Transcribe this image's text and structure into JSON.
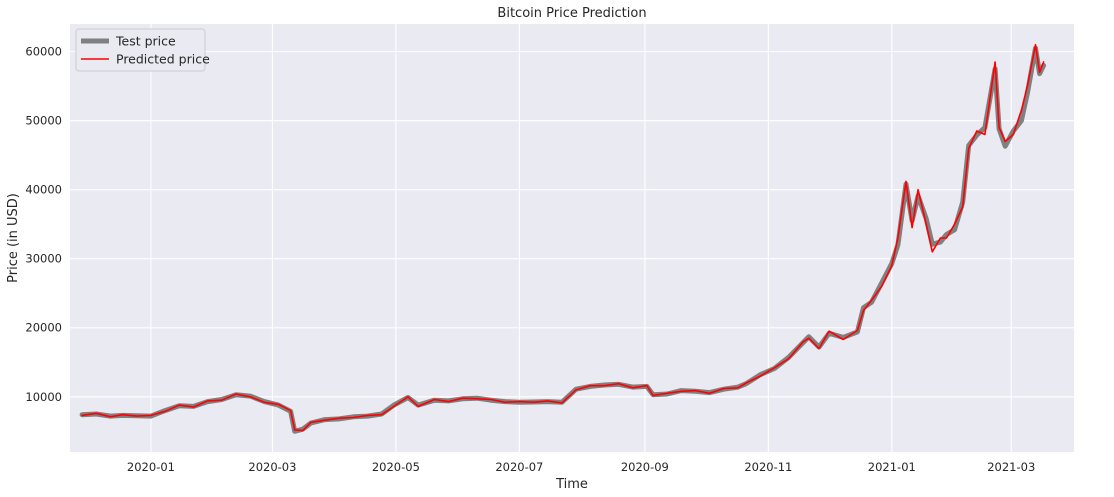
{
  "chart_data": {
    "type": "line",
    "title": "Bitcoin Price Prediction",
    "xlabel": "Time",
    "ylabel": "Price (in USD)",
    "xlim": [
      "2019-11-22",
      "2021-04-01"
    ],
    "ylim": [
      2000,
      64000
    ],
    "x_ticks": [
      "2020-01",
      "2020-03",
      "2020-05",
      "2020-07",
      "2020-09",
      "2020-11",
      "2021-01",
      "2021-03"
    ],
    "y_ticks": [
      10000,
      20000,
      30000,
      40000,
      50000,
      60000
    ],
    "grid": true,
    "legend_position": "upper-left",
    "colors": {
      "plot_bg": "#EAEAF2",
      "grid": "#FFFFFF",
      "test": "#808080",
      "predicted": "#FF0000"
    },
    "series": [
      {
        "name": "Test price",
        "x": [
          "2019-11-28",
          "2019-12-05",
          "2019-12-12",
          "2019-12-18",
          "2019-12-25",
          "2020-01-01",
          "2020-01-08",
          "2020-01-15",
          "2020-01-22",
          "2020-01-29",
          "2020-02-05",
          "2020-02-12",
          "2020-02-19",
          "2020-02-26",
          "2020-03-04",
          "2020-03-10",
          "2020-03-12",
          "2020-03-16",
          "2020-03-20",
          "2020-03-27",
          "2020-04-03",
          "2020-04-10",
          "2020-04-17",
          "2020-04-24",
          "2020-04-30",
          "2020-05-07",
          "2020-05-12",
          "2020-05-20",
          "2020-05-27",
          "2020-06-03",
          "2020-06-10",
          "2020-06-17",
          "2020-06-24",
          "2020-07-01",
          "2020-07-08",
          "2020-07-15",
          "2020-07-22",
          "2020-07-29",
          "2020-08-05",
          "2020-08-12",
          "2020-08-19",
          "2020-08-26",
          "2020-09-02",
          "2020-09-05",
          "2020-09-12",
          "2020-09-19",
          "2020-09-26",
          "2020-10-03",
          "2020-10-10",
          "2020-10-17",
          "2020-10-21",
          "2020-10-28",
          "2020-11-04",
          "2020-11-11",
          "2020-11-18",
          "2020-11-21",
          "2020-11-26",
          "2020-12-01",
          "2020-12-08",
          "2020-12-15",
          "2020-12-18",
          "2020-12-22",
          "2020-12-27",
          "2021-01-01",
          "2021-01-04",
          "2021-01-08",
          "2021-01-11",
          "2021-01-14",
          "2021-01-18",
          "2021-01-21",
          "2021-01-25",
          "2021-01-28",
          "2021-02-01",
          "2021-02-05",
          "2021-02-08",
          "2021-02-12",
          "2021-02-16",
          "2021-02-21",
          "2021-02-23",
          "2021-02-26",
          "2021-03-02",
          "2021-03-06",
          "2021-03-09",
          "2021-03-13",
          "2021-03-15",
          "2021-03-17"
        ],
        "y": [
          7400,
          7500,
          7200,
          7300,
          7250,
          7200,
          8000,
          8700,
          8600,
          9300,
          9600,
          10300,
          10100,
          9300,
          8800,
          7900,
          5000,
          5300,
          6200,
          6700,
          6800,
          7100,
          7200,
          7500,
          8800,
          9900,
          8800,
          9500,
          9400,
          9700,
          9800,
          9500,
          9300,
          9200,
          9250,
          9300,
          9200,
          11100,
          11500,
          11700,
          11800,
          11400,
          11500,
          10300,
          10400,
          10900,
          10800,
          10600,
          11100,
          11400,
          11900,
          13200,
          14100,
          15700,
          17800,
          18700,
          17200,
          19200,
          18600,
          19400,
          22900,
          23700,
          26500,
          29300,
          32000,
          40800,
          35500,
          39100,
          35800,
          32100,
          32400,
          33500,
          34200,
          38200,
          46400,
          47900,
          49000,
          57500,
          48800,
          46300,
          48500,
          50000,
          54000,
          60500,
          56800,
          58000
        ]
      },
      {
        "name": "Predicted price",
        "x": [
          "2019-11-28",
          "2019-12-05",
          "2019-12-12",
          "2019-12-18",
          "2019-12-25",
          "2020-01-01",
          "2020-01-08",
          "2020-01-15",
          "2020-01-22",
          "2020-01-29",
          "2020-02-05",
          "2020-02-12",
          "2020-02-19",
          "2020-02-26",
          "2020-03-04",
          "2020-03-10",
          "2020-03-12",
          "2020-03-16",
          "2020-03-20",
          "2020-03-27",
          "2020-04-03",
          "2020-04-10",
          "2020-04-17",
          "2020-04-24",
          "2020-04-30",
          "2020-05-07",
          "2020-05-12",
          "2020-05-20",
          "2020-05-27",
          "2020-06-03",
          "2020-06-10",
          "2020-06-17",
          "2020-06-24",
          "2020-07-01",
          "2020-07-08",
          "2020-07-15",
          "2020-07-22",
          "2020-07-29",
          "2020-08-05",
          "2020-08-12",
          "2020-08-19",
          "2020-08-26",
          "2020-09-02",
          "2020-09-05",
          "2020-09-12",
          "2020-09-19",
          "2020-09-26",
          "2020-10-03",
          "2020-10-10",
          "2020-10-17",
          "2020-10-21",
          "2020-10-28",
          "2020-11-04",
          "2020-11-11",
          "2020-11-18",
          "2020-11-21",
          "2020-11-26",
          "2020-12-01",
          "2020-12-08",
          "2020-12-15",
          "2020-12-18",
          "2020-12-22",
          "2020-12-27",
          "2021-01-01",
          "2021-01-04",
          "2021-01-08",
          "2021-01-11",
          "2021-01-14",
          "2021-01-18",
          "2021-01-21",
          "2021-01-25",
          "2021-01-28",
          "2021-02-01",
          "2021-02-05",
          "2021-02-08",
          "2021-02-12",
          "2021-02-16",
          "2021-02-21",
          "2021-02-23",
          "2021-02-26",
          "2021-03-02",
          "2021-03-06",
          "2021-03-09",
          "2021-03-13",
          "2021-03-15",
          "2021-03-17"
        ],
        "y": [
          7300,
          7600,
          7100,
          7400,
          7200,
          7300,
          7900,
          8800,
          8500,
          9400,
          9500,
          10400,
          10000,
          9200,
          8900,
          8000,
          5200,
          5100,
          6300,
          6600,
          6900,
          7000,
          7300,
          7400,
          8600,
          10000,
          8600,
          9600,
          9300,
          9800,
          9700,
          9600,
          9200,
          9300,
          9200,
          9400,
          9100,
          11000,
          11600,
          11600,
          11900,
          11300,
          11600,
          10200,
          10500,
          10800,
          10900,
          10500,
          11200,
          11300,
          12000,
          13000,
          14200,
          15500,
          17900,
          18500,
          17000,
          19500,
          18300,
          19600,
          22500,
          24000,
          26000,
          29000,
          33000,
          41200,
          34500,
          40000,
          35000,
          31000,
          33000,
          33000,
          35000,
          37500,
          46000,
          48500,
          48000,
          58500,
          49000,
          47000,
          48000,
          51500,
          55000,
          61000,
          57000,
          58500
        ]
      }
    ]
  }
}
